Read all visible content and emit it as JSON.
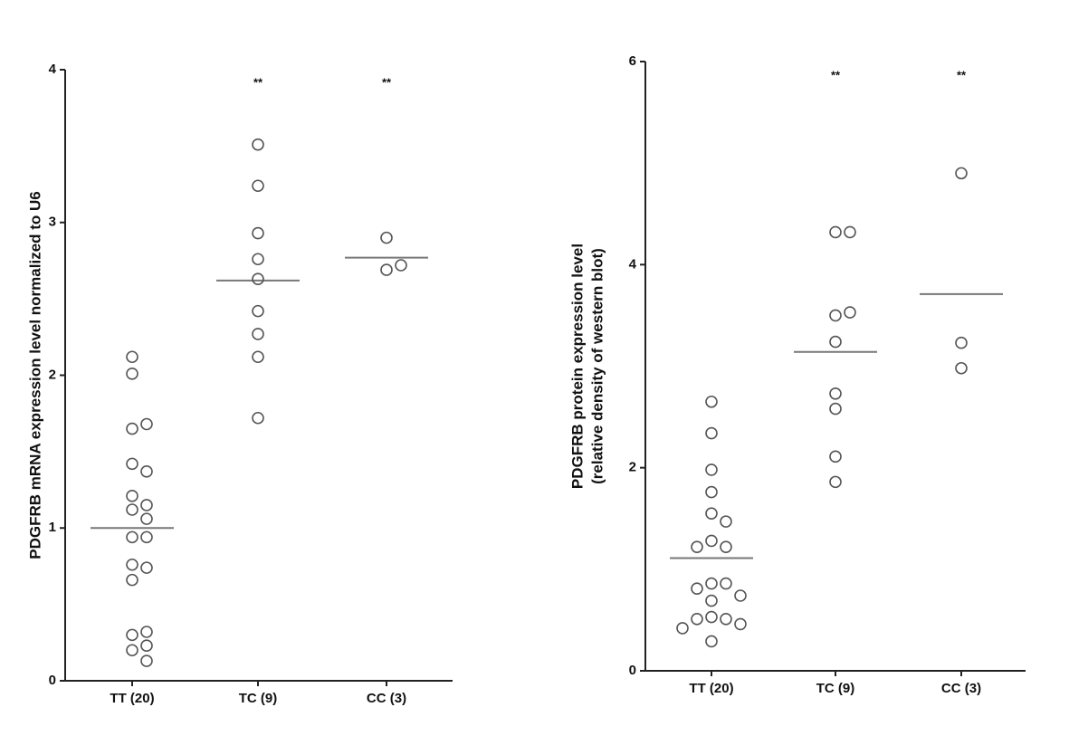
{
  "chart_data": [
    {
      "type": "dot",
      "ylabel": [
        "PDGFRB mRNA expression level normalized to  U6"
      ],
      "categories": [
        "TT (20)",
        "TC (9)",
        "CC (3)"
      ],
      "values": [
        [
          2.12,
          2.01,
          1.65,
          1.68,
          1.42,
          1.37,
          1.21,
          1.12,
          1.15,
          1.06,
          0.94,
          0.94,
          0.76,
          0.74,
          0.66,
          0.3,
          0.32,
          0.23,
          0.2,
          0.13
        ],
        [
          3.51,
          3.24,
          2.93,
          2.76,
          2.63,
          2.42,
          2.27,
          2.12,
          1.72
        ],
        [
          2.9,
          2.69,
          2.72
        ]
      ],
      "means": [
        1.0,
        2.62,
        2.77
      ],
      "annotations": [
        null,
        "**",
        "**"
      ],
      "color": "#555555",
      "ylim": [
        0,
        4
      ],
      "yticks": [
        0,
        1,
        2,
        3,
        4
      ]
    },
    {
      "type": "dot",
      "ylabel": [
        "PDGFRB protein expression level",
        "(relative density of western blot)"
      ],
      "categories": [
        "TT (20)",
        "TC (9)",
        "CC (3)"
      ],
      "values": [
        [
          2.65,
          2.34,
          1.98,
          1.76,
          1.55,
          1.47,
          1.28,
          1.22,
          1.22,
          0.86,
          0.86,
          0.81,
          0.74,
          0.69,
          0.53,
          0.51,
          0.51,
          0.46,
          0.42,
          0.29
        ],
        [
          4.32,
          4.32,
          3.5,
          3.53,
          3.24,
          2.73,
          2.58,
          2.11,
          1.86
        ],
        [
          4.9,
          3.23,
          2.98
        ]
      ],
      "means": [
        1.11,
        3.14,
        3.71
      ],
      "annotations": [
        null,
        "**",
        "**"
      ],
      "color": "#555555",
      "ylim": [
        0,
        6
      ],
      "yticks": [
        0,
        2,
        4,
        6
      ]
    }
  ]
}
